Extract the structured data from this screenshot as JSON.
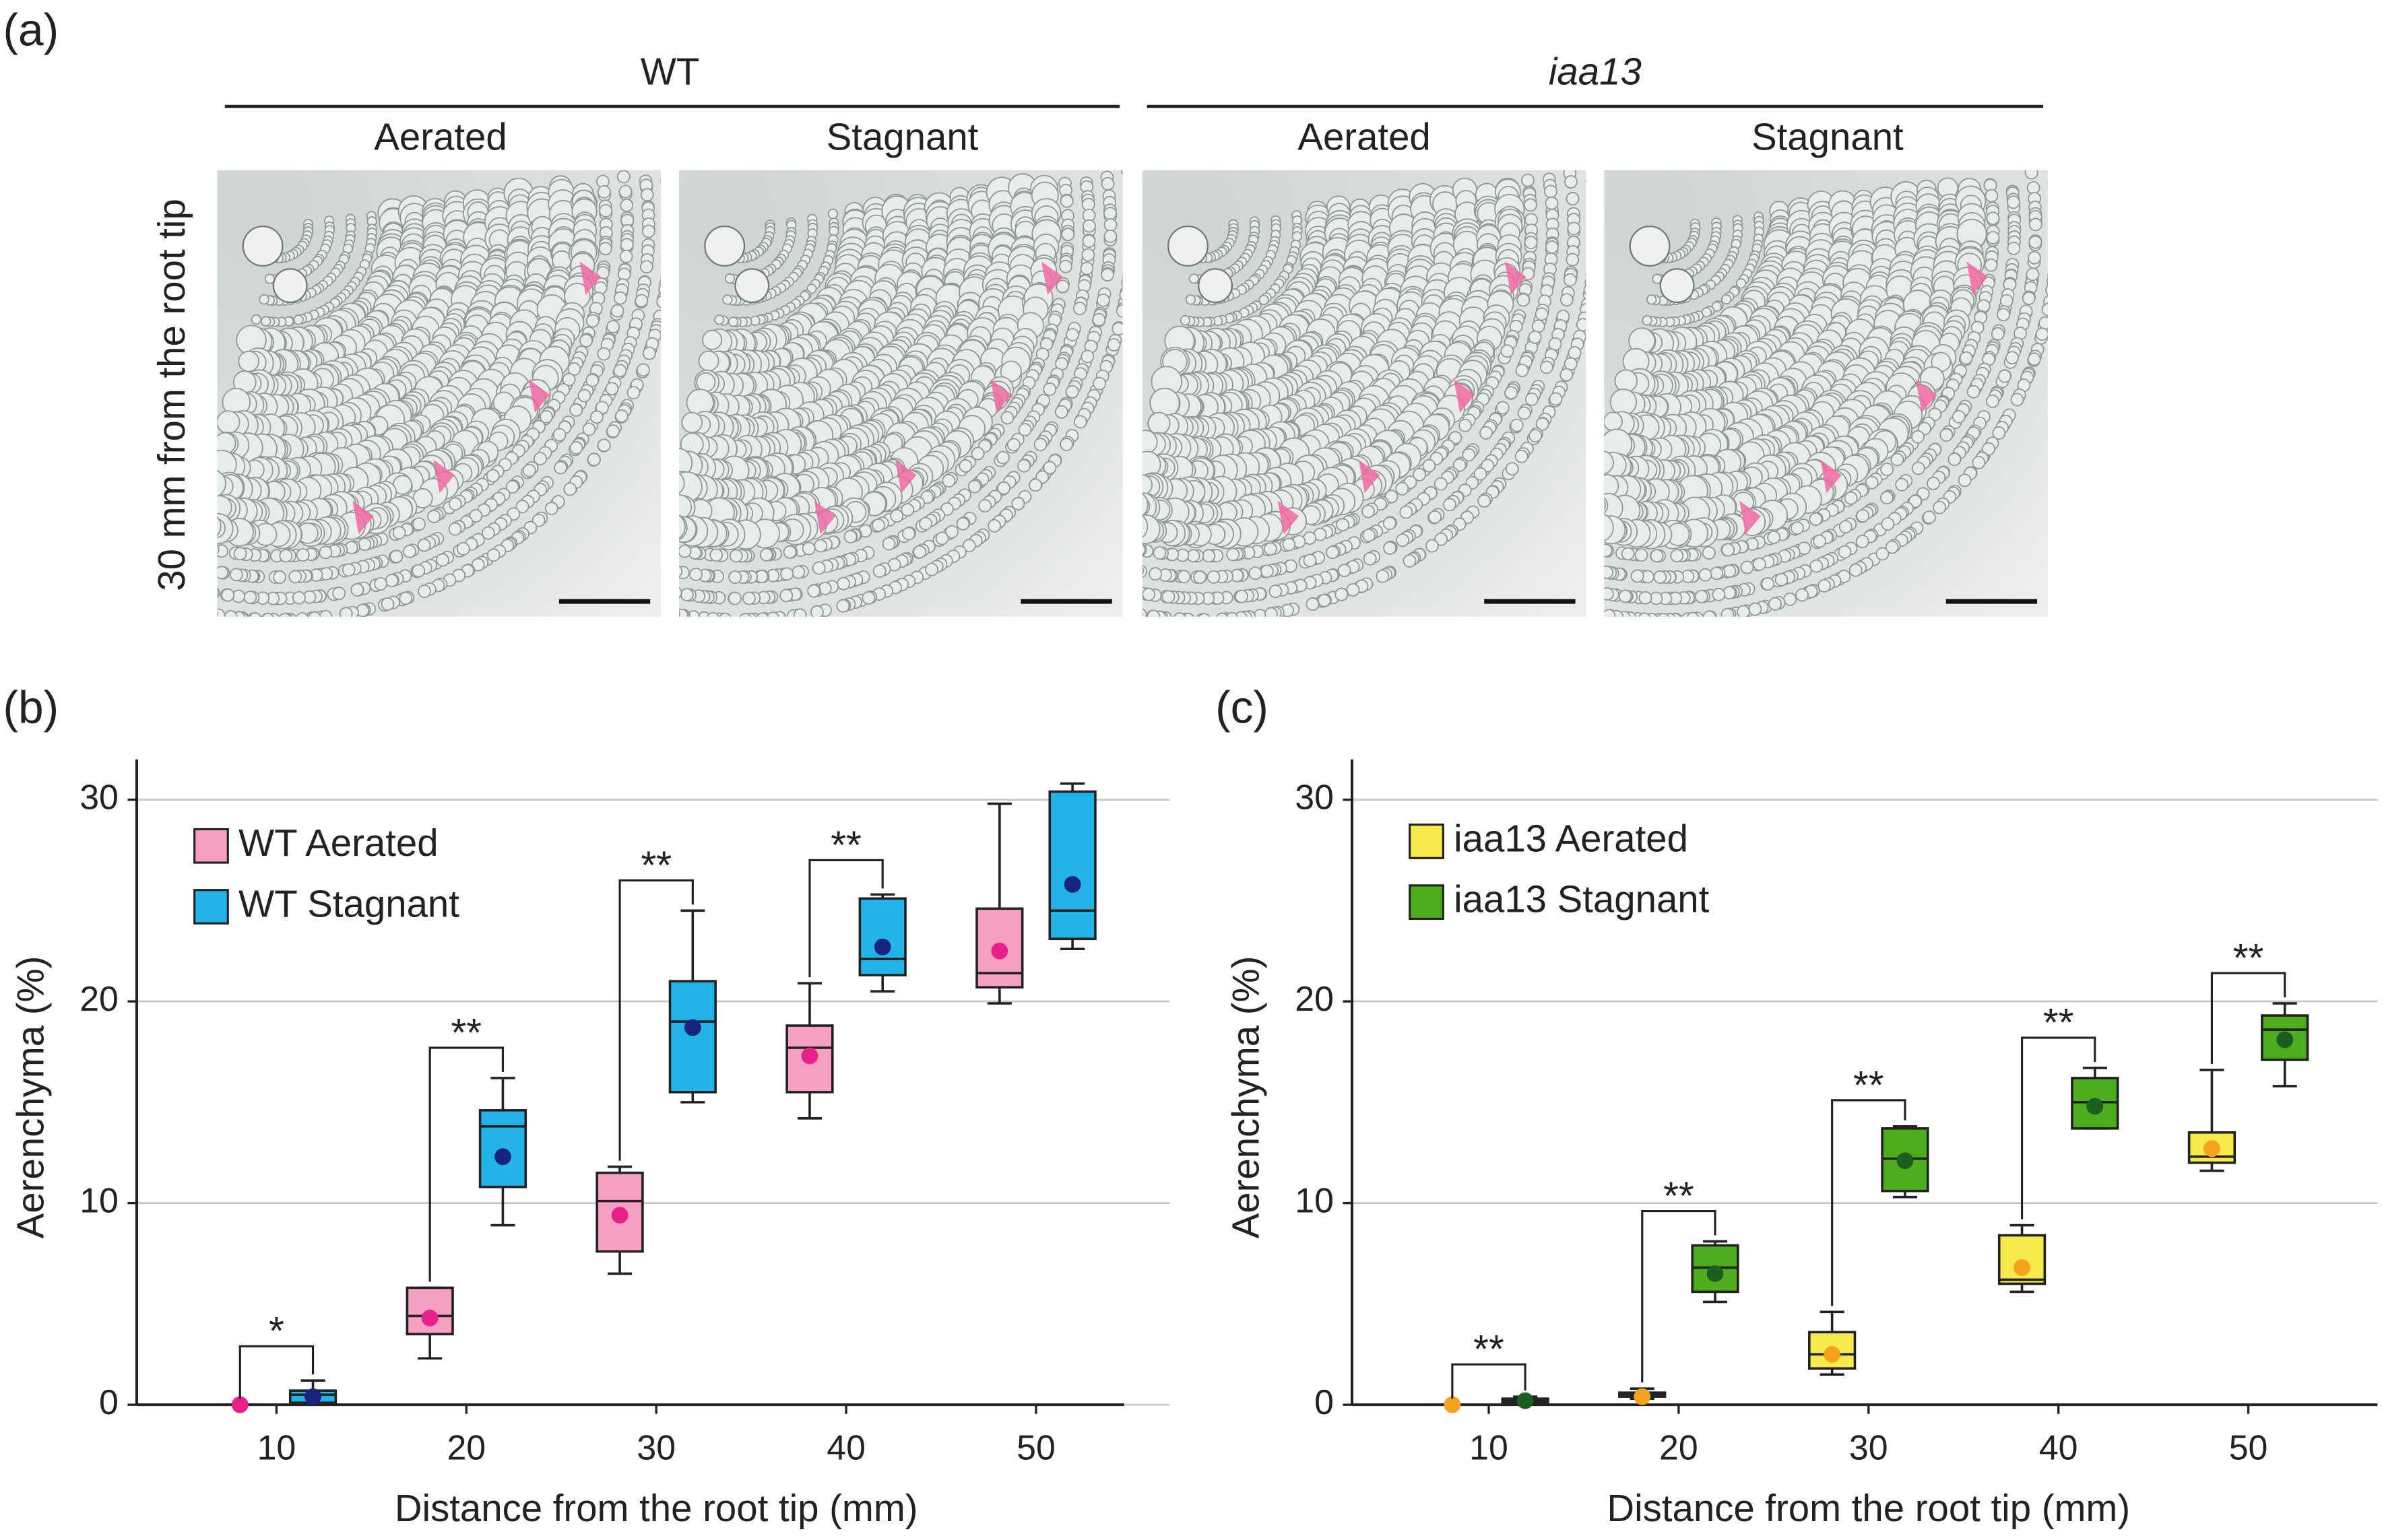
{
  "panel_labels": [
    "(a)",
    "(b)",
    "(c)"
  ],
  "panel_a": {
    "groups": [
      "WT",
      "iaa13"
    ],
    "conditions": [
      "Aerated",
      "Stagnant",
      "Aerated",
      "Stagnant"
    ],
    "row_label": "30 mm from the root tip"
  },
  "chart_data": [
    {
      "type": "box",
      "xlabel": "Distance from the root tip (mm)",
      "ylabel": "Aerenchyma (%)",
      "categories": [
        "10",
        "20",
        "30",
        "40",
        "50"
      ],
      "ylim": [
        0,
        32
      ],
      "yticks": [
        0,
        10,
        20,
        30
      ],
      "grid": true,
      "legend": "upper left",
      "series": [
        {
          "name": "WT Aerated",
          "color": "#f59fc2",
          "mean_color": "#e8208a",
          "min": [
            0,
            2.3,
            6.5,
            14.2,
            19.9
          ],
          "q1": [
            0,
            3.5,
            7.6,
            15.5,
            20.7
          ],
          "median": [
            0,
            4.4,
            10.1,
            17.7,
            21.4
          ],
          "q3": [
            0,
            5.8,
            11.5,
            18.8,
            24.6
          ],
          "max": [
            0,
            5.8,
            11.8,
            20.9,
            29.8
          ],
          "mean": [
            0,
            4.3,
            9.4,
            17.3,
            22.5
          ]
        },
        {
          "name": "WT Stagnant",
          "color": "#22b4e8",
          "mean_color": "#1a237e",
          "min": [
            0,
            8.9,
            15.0,
            20.5,
            22.6
          ],
          "q1": [
            0.1,
            10.8,
            15.5,
            21.3,
            23.1
          ],
          "median": [
            0.5,
            13.8,
            19.0,
            22.1,
            24.5
          ],
          "q3": [
            0.7,
            14.6,
            21.0,
            25.1,
            30.4
          ],
          "max": [
            1.2,
            16.2,
            24.5,
            25.3,
            30.8
          ],
          "mean": [
            0.4,
            12.3,
            18.7,
            22.7,
            25.8
          ]
        }
      ],
      "significance": [
        {
          "category": "10",
          "label": "*",
          "y": 2.9
        },
        {
          "category": "20",
          "label": "**",
          "y": 17.7
        },
        {
          "category": "30",
          "label": "**",
          "y": 26.0
        },
        {
          "category": "40",
          "label": "**",
          "y": 27.0
        }
      ]
    },
    {
      "type": "box",
      "xlabel": "Distance from the root tip (mm)",
      "ylabel": "Aerenchyma (%)",
      "categories": [
        "10",
        "20",
        "30",
        "40",
        "50"
      ],
      "ylim": [
        0,
        32
      ],
      "yticks": [
        0,
        10,
        20,
        30
      ],
      "grid": true,
      "legend": "upper left",
      "series": [
        {
          "name": "iaa13 Aerated",
          "color": "#f8ea4c",
          "mean_color": "#f5a31f",
          "min": [
            0,
            0.3,
            1.5,
            5.6,
            11.6
          ],
          "q1": [
            0,
            0.4,
            1.8,
            6.0,
            12.0
          ],
          "median": [
            0,
            0.5,
            2.5,
            6.2,
            12.3
          ],
          "q3": [
            0,
            0.6,
            3.6,
            8.4,
            13.5
          ],
          "max": [
            0,
            0.8,
            4.6,
            8.9,
            16.6
          ],
          "mean": [
            0,
            0.4,
            2.5,
            6.8,
            12.7
          ]
        },
        {
          "name": "iaa13 Stagnant",
          "color": "#4cae1c",
          "mean_color": "#1b5e20",
          "min": [
            0,
            5.1,
            10.3,
            13.7,
            15.8
          ],
          "q1": [
            0.1,
            5.6,
            10.6,
            13.7,
            17.1
          ],
          "median": [
            0.2,
            6.8,
            12.2,
            15.0,
            18.6
          ],
          "q3": [
            0.3,
            7.9,
            13.7,
            16.2,
            19.3
          ],
          "max": [
            0.4,
            8.1,
            13.8,
            16.7,
            19.9
          ],
          "mean": [
            0.2,
            6.5,
            12.1,
            14.8,
            18.1
          ]
        }
      ],
      "significance": [
        {
          "category": "10",
          "label": "**",
          "y": 2.0
        },
        {
          "category": "20",
          "label": "**",
          "y": 9.6
        },
        {
          "category": "30",
          "label": "**",
          "y": 15.1
        },
        {
          "category": "40",
          "label": "**",
          "y": 18.2
        },
        {
          "category": "50",
          "label": "**",
          "y": 21.4
        }
      ]
    }
  ]
}
